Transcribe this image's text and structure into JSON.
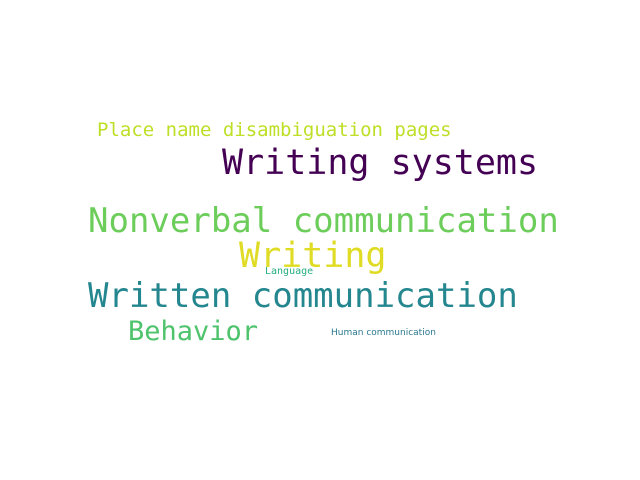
{
  "words": [
    {
      "text": "Place name disambiguation pages",
      "color": "#bddf26"
    },
    {
      "text": "Writing systems",
      "color": "#440154"
    },
    {
      "text": "Nonverbal communication",
      "color": "#6ccd5a"
    },
    {
      "text": "Writing",
      "color": "#e0dc25"
    },
    {
      "text": "Language",
      "color": "#25ac82"
    },
    {
      "text": "Written communication",
      "color": "#24868e"
    },
    {
      "text": "Behavior",
      "color": "#4ec36b"
    },
    {
      "text": "Human communication",
      "color": "#2a788e"
    }
  ]
}
